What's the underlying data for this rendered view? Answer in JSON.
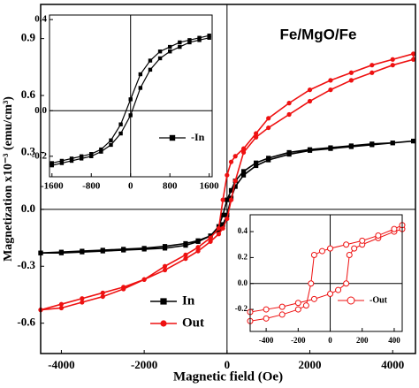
{
  "chart_data": [
    {
      "type": "line",
      "annotation": "Fe/MgO/Fe",
      "xlabel": "Magnetic  field (Oe)",
      "ylabel": "Magnetization x10⁻³ (emu/cm³)",
      "xlim": [
        -4500,
        4550
      ],
      "ylim": [
        -0.76,
        1.08
      ],
      "xticks": [
        -4000,
        -2000,
        0,
        2000,
        4000
      ],
      "yticks": [
        -0.6,
        -0.3,
        {
          "value": 0,
          "label": "0.0"
        },
        0.3,
        0.6,
        0.9
      ],
      "x": [
        -4500,
        -4000,
        -3500,
        -3000,
        -2500,
        -2000,
        -1500,
        -1000,
        -700,
        -400,
        -200,
        -100,
        0,
        100,
        200,
        400,
        700,
        1000,
        1500,
        2000,
        2500,
        3000,
        3500,
        4000,
        4500,
        4500,
        4000,
        3500,
        3000,
        2500,
        2000,
        1500,
        1000,
        700,
        400,
        200,
        100,
        0,
        -100,
        -200,
        -400,
        -700,
        -1000,
        -1500,
        -2000,
        -2500,
        -3000,
        -3500,
        -4000,
        -4500
      ],
      "series": [
        {
          "name": "In",
          "color": "#000000",
          "marker": "square",
          "values": [
            -0.23,
            -0.225,
            -0.22,
            -0.215,
            -0.21,
            -0.205,
            -0.195,
            -0.18,
            -0.165,
            -0.14,
            -0.11,
            -0.08,
            -0.03,
            0.06,
            0.12,
            0.18,
            0.23,
            0.26,
            0.29,
            0.31,
            0.32,
            0.33,
            0.34,
            0.35,
            0.36,
            0.36,
            0.35,
            0.345,
            0.335,
            0.325,
            0.315,
            0.3,
            0.27,
            0.245,
            0.2,
            0.15,
            0.1,
            0.05,
            -0.03,
            -0.09,
            -0.14,
            -0.17,
            -0.19,
            -0.205,
            -0.21,
            -0.215,
            -0.22,
            -0.225,
            -0.23,
            -0.23
          ]
        },
        {
          "name": "Out",
          "color": "#ee1111",
          "marker": "circle",
          "values": [
            -0.53,
            -0.5,
            -0.47,
            -0.44,
            -0.41,
            -0.37,
            -0.32,
            -0.26,
            -0.22,
            -0.17,
            -0.13,
            -0.1,
            -0.05,
            0.05,
            0.15,
            0.3,
            0.38,
            0.43,
            0.5,
            0.57,
            0.63,
            0.68,
            0.72,
            0.76,
            0.79,
            0.82,
            0.79,
            0.76,
            0.72,
            0.68,
            0.63,
            0.56,
            0.48,
            0.4,
            0.32,
            0.28,
            0.25,
            0.18,
            0.05,
            -0.1,
            -0.15,
            -0.2,
            -0.24,
            -0.3,
            -0.37,
            -0.42,
            -0.46,
            -0.49,
            -0.52,
            -0.53
          ]
        }
      ]
    },
    {
      "type": "line",
      "xlim": [
        -1650,
        1660
      ],
      "ylim": [
        -0.29,
        0.42
      ],
      "xticks": [
        -1600,
        -800,
        0,
        800,
        1600
      ],
      "yticks": [
        -0.2,
        {
          "value": 0,
          "label": "0.0"
        },
        0.4
      ],
      "x": [
        -1600,
        -1400,
        -1200,
        -1000,
        -800,
        -600,
        -400,
        -200,
        0,
        200,
        400,
        600,
        800,
        1000,
        1200,
        1400,
        1600,
        1600,
        1400,
        1200,
        1000,
        800,
        600,
        400,
        200,
        0,
        -200,
        -400,
        -600,
        -800,
        -1000,
        -1200,
        -1400,
        -1600
      ],
      "series": [
        {
          "name": "-In",
          "color": "#000000",
          "marker": "square",
          "values": [
            -0.24,
            -0.23,
            -0.22,
            -0.21,
            -0.2,
            -0.18,
            -0.15,
            -0.1,
            -0.02,
            0.1,
            0.18,
            0.23,
            0.26,
            0.28,
            0.3,
            0.31,
            0.32,
            0.33,
            0.32,
            0.31,
            0.3,
            0.28,
            0.26,
            0.22,
            0.16,
            0.05,
            -0.06,
            -0.13,
            -0.17,
            -0.19,
            -0.2,
            -0.21,
            -0.22,
            -0.23
          ]
        }
      ]
    },
    {
      "type": "line",
      "xlim": [
        -500,
        450
      ],
      "ylim": [
        -0.37,
        0.53
      ],
      "xticks": [
        -400,
        -200,
        0,
        200,
        400
      ],
      "yticks": [
        -0.2,
        {
          "value": 0,
          "label": "0.0"
        },
        0.2,
        0.4
      ],
      "x": [
        -500,
        -400,
        -300,
        -200,
        -100,
        0,
        50,
        100,
        120,
        150,
        200,
        300,
        400,
        450,
        450,
        400,
        300,
        200,
        100,
        0,
        -50,
        -100,
        -120,
        -150,
        -200,
        -300,
        -400,
        -500
      ],
      "series": [
        {
          "name": "-Out",
          "color": "#ee1111",
          "marker": "open-circle",
          "values": [
            -0.22,
            -0.2,
            -0.18,
            -0.15,
            -0.12,
            -0.08,
            -0.05,
            0,
            0.22,
            0.27,
            0.3,
            0.35,
            0.4,
            0.42,
            0.45,
            0.42,
            0.37,
            0.33,
            0.3,
            0.27,
            0.25,
            0.22,
            0,
            -0.17,
            -0.2,
            -0.24,
            -0.27,
            -0.29
          ]
        }
      ]
    }
  ]
}
